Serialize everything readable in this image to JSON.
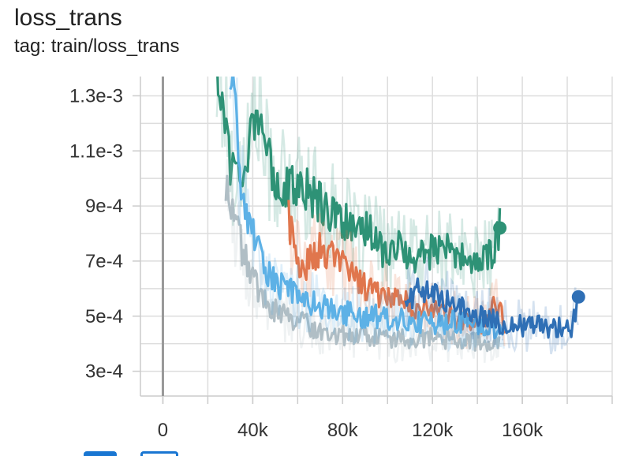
{
  "card": {
    "title": "loss_trans",
    "subtitle": "tag: train/loss_trans"
  },
  "toolbar": {
    "fit_icon": "fit-domain-icon",
    "expand_icon": "expand-icon",
    "download_icon": "download-icon"
  },
  "chart_data": {
    "type": "line",
    "title": "loss_trans",
    "subtitle": "tag: train/loss_trans",
    "xlabel": "",
    "ylabel": "",
    "xlim": [
      -10000,
      200000
    ],
    "ylim": [
      0.00021,
      0.00137
    ],
    "x_ticks": [
      0,
      40000,
      80000,
      120000,
      160000
    ],
    "x_tick_labels": [
      "0",
      "40k",
      "80k",
      "120k",
      "160k"
    ],
    "y_ticks": [
      0.0003,
      0.0005,
      0.0007,
      0.0009,
      0.0011,
      0.0013
    ],
    "y_tick_labels": [
      "3e-4",
      "5e-4",
      "7e-4",
      "9e-4",
      "1.1e-3",
      "1.3e-3"
    ],
    "grid": true,
    "series": [
      {
        "color": "#2e9276",
        "x": [
          24000,
          28000,
          30000,
          34000,
          38000,
          42000,
          46000,
          50000,
          56000,
          62000,
          68000,
          74000,
          80000,
          86000,
          92000,
          98000,
          104000,
          110000,
          116000,
          122000,
          128000,
          134000,
          140000,
          146000,
          150000
        ],
        "y": [
          0.00137,
          0.00125,
          0.00105,
          0.00102,
          0.00112,
          0.00128,
          0.00108,
          0.001,
          0.00096,
          0.00098,
          0.00093,
          0.00088,
          0.00086,
          0.00078,
          0.00082,
          0.00074,
          0.00076,
          0.00071,
          0.00072,
          0.00075,
          0.00073,
          0.00071,
          0.0007,
          0.00072,
          0.00082
        ],
        "end_marker": true
      },
      {
        "color": "#e0764d",
        "x": [
          56000,
          62000,
          66000,
          70000,
          76000,
          82000,
          88000,
          94000,
          100000,
          106000,
          112000,
          118000,
          124000,
          130000,
          136000,
          142000,
          146000,
          150000,
          152000
        ],
        "y": [
          0.00085,
          0.00065,
          0.00071,
          0.00074,
          0.00071,
          0.00069,
          0.00062,
          0.00058,
          0.00059,
          0.00056,
          0.00054,
          0.00052,
          0.00051,
          0.00049,
          0.00048,
          0.00047,
          0.00052,
          0.00054,
          0.00046
        ]
      },
      {
        "color": "#b0bec5",
        "x": [
          28000,
          32000,
          36000,
          40000,
          44000,
          48000,
          52000,
          58000,
          64000,
          70000,
          76000,
          82000,
          90000,
          98000,
          106000,
          114000,
          122000,
          130000,
          138000,
          146000,
          150000
        ],
        "y": [
          0.00098,
          0.00086,
          0.00072,
          0.00063,
          0.00058,
          0.00054,
          0.00051,
          0.00049,
          0.00047,
          0.00045,
          0.00044,
          0.00043,
          0.00043,
          0.00042,
          0.00042,
          0.00042,
          0.00042,
          0.00041,
          0.00041,
          0.00041,
          0.00042
        ]
      },
      {
        "color": "#5db1e6",
        "x": [
          30000,
          32000,
          34000,
          36000,
          38000,
          40000,
          42000,
          44000,
          46000,
          48000,
          52000,
          58000,
          64000,
          70000,
          76000,
          82000,
          88000,
          94000,
          100000,
          106000,
          112000,
          118000,
          124000,
          130000,
          136000,
          142000,
          148000,
          152000
        ],
        "y": [
          0.00137,
          0.00125,
          0.00102,
          0.00092,
          0.00086,
          0.0008,
          0.00075,
          0.0007,
          0.00066,
          0.00064,
          0.00061,
          0.00058,
          0.00055,
          0.00054,
          0.00052,
          0.00051,
          0.0005,
          0.0005,
          0.00049,
          0.00049,
          0.00048,
          0.00048,
          0.00047,
          0.00048,
          0.00047,
          0.00047,
          0.00046,
          0.00047
        ]
      },
      {
        "color": "#2f6fb5",
        "x": [
          108000,
          114000,
          118000,
          122000,
          128000,
          134000,
          140000,
          146000,
          150000,
          154000,
          158000,
          162000,
          166000,
          170000,
          174000,
          178000,
          182000,
          185000
        ],
        "y": [
          0.00056,
          0.00059,
          0.00061,
          0.00058,
          0.00055,
          0.00053,
          0.00051,
          0.0005,
          0.00047,
          0.00046,
          0.00047,
          0.00046,
          0.00047,
          0.00046,
          0.00045,
          0.00046,
          0.00046,
          0.00057
        ],
        "end_marker": true
      }
    ]
  }
}
